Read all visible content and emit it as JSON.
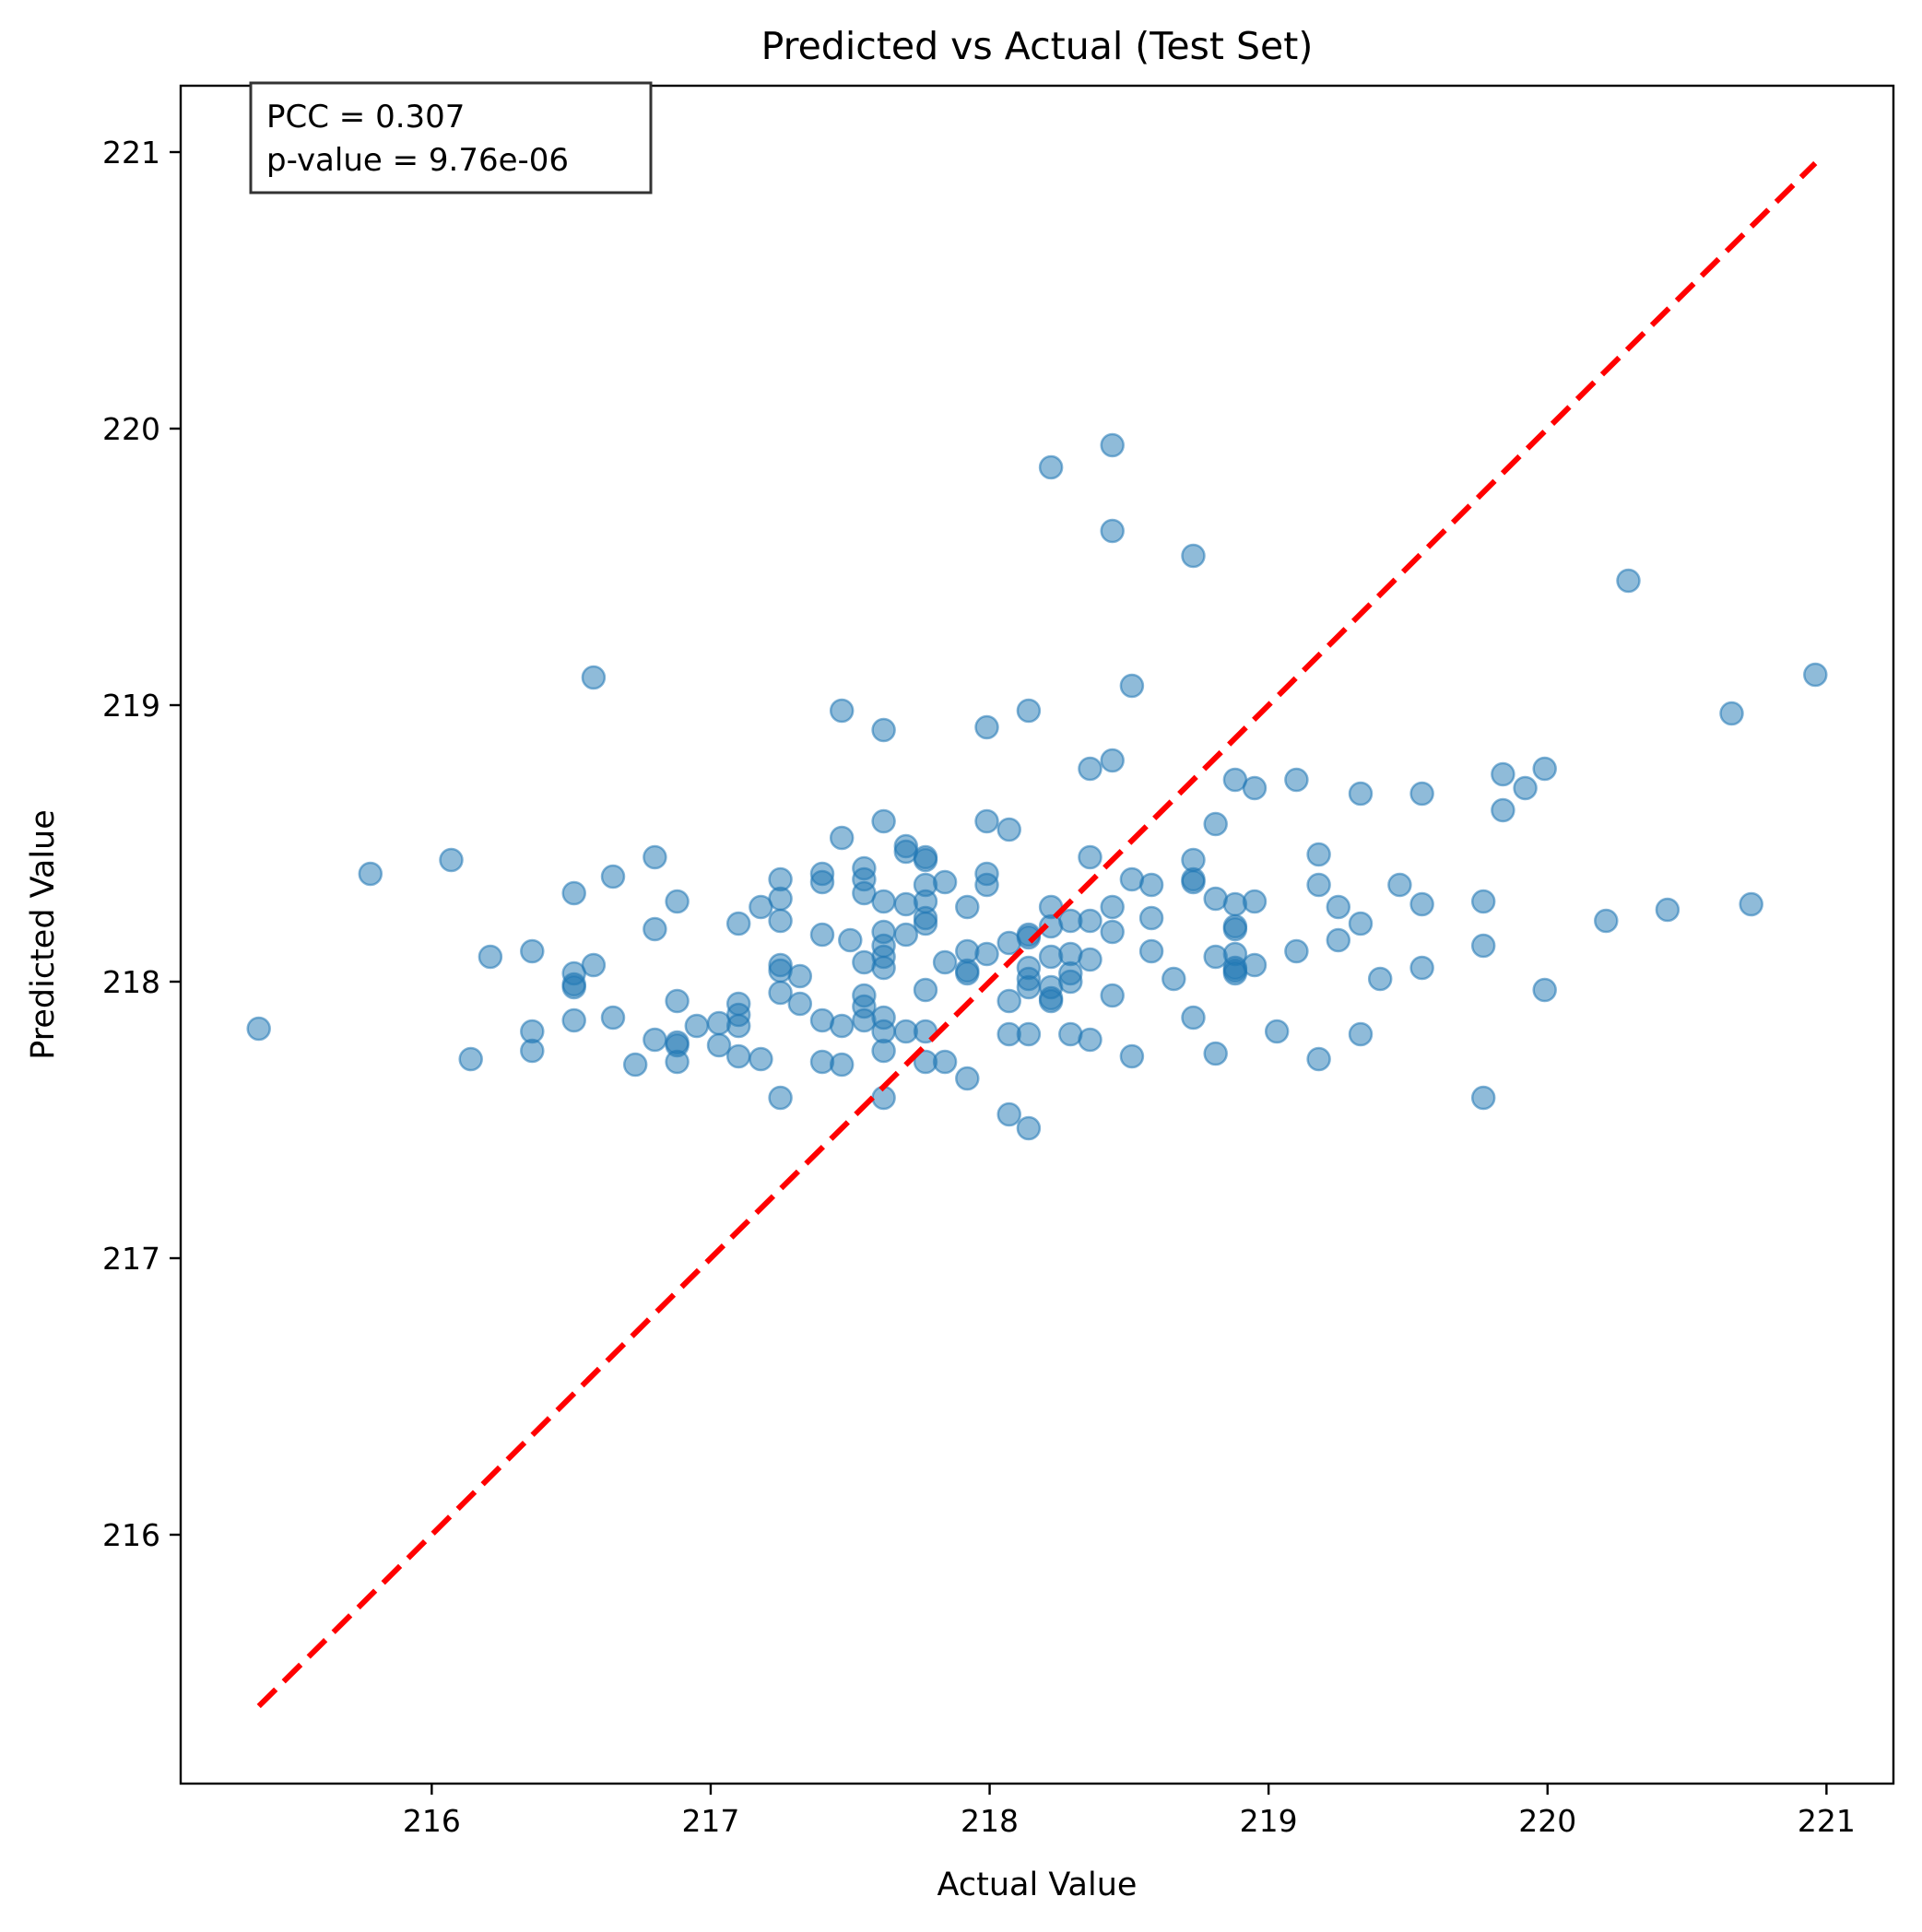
{
  "chart_data": {
    "type": "scatter",
    "title": "Predicted vs Actual (Test Set)",
    "xlabel": "Actual Value",
    "ylabel": "Predicted Value",
    "xlim": [
      215.1,
      221.24
    ],
    "ylim": [
      215.1,
      221.24
    ],
    "xticks": [
      "216",
      "217",
      "218",
      "219",
      "220",
      "221"
    ],
    "yticks": [
      "216",
      "217",
      "218",
      "219",
      "220",
      "221"
    ],
    "grid": false,
    "annotation": {
      "line1": "PCC = 0.307",
      "line2": "p-value = 9.76e-06"
    },
    "reference_line": {
      "from": [
        215.38,
        215.38
      ],
      "to": [
        220.96,
        220.96
      ],
      "color": "#ff0000",
      "style": "dashed"
    },
    "marker_color": "#1f77b4",
    "points": [
      [
        215.38,
        217.83
      ],
      [
        215.78,
        218.39
      ],
      [
        216.07,
        218.44
      ],
      [
        216.14,
        217.72
      ],
      [
        216.21,
        218.09
      ],
      [
        216.36,
        218.11
      ],
      [
        216.36,
        217.82
      ],
      [
        216.36,
        217.75
      ],
      [
        216.51,
        218.32
      ],
      [
        216.51,
        218.03
      ],
      [
        216.51,
        217.99
      ],
      [
        216.51,
        217.98
      ],
      [
        216.51,
        217.86
      ],
      [
        216.58,
        219.1
      ],
      [
        216.58,
        218.06
      ],
      [
        216.65,
        218.38
      ],
      [
        216.65,
        217.87
      ],
      [
        216.73,
        217.7
      ],
      [
        216.8,
        218.45
      ],
      [
        216.8,
        218.19
      ],
      [
        216.8,
        217.79
      ],
      [
        216.88,
        218.29
      ],
      [
        216.88,
        217.93
      ],
      [
        216.88,
        217.78
      ],
      [
        216.88,
        217.77
      ],
      [
        216.88,
        217.71
      ],
      [
        216.95,
        217.84
      ],
      [
        217.03,
        217.85
      ],
      [
        217.03,
        217.77
      ],
      [
        217.1,
        218.21
      ],
      [
        217.1,
        217.92
      ],
      [
        217.1,
        217.88
      ],
      [
        217.1,
        217.84
      ],
      [
        217.1,
        217.73
      ],
      [
        217.18,
        218.27
      ],
      [
        217.18,
        217.72
      ],
      [
        217.25,
        218.37
      ],
      [
        217.25,
        218.3
      ],
      [
        217.25,
        218.22
      ],
      [
        217.25,
        218.06
      ],
      [
        217.25,
        218.04
      ],
      [
        217.25,
        217.96
      ],
      [
        217.25,
        217.58
      ],
      [
        217.32,
        218.02
      ],
      [
        217.32,
        217.92
      ],
      [
        217.4,
        218.39
      ],
      [
        217.4,
        218.36
      ],
      [
        217.4,
        218.17
      ],
      [
        217.4,
        217.86
      ],
      [
        217.4,
        217.71
      ],
      [
        217.47,
        218.98
      ],
      [
        217.47,
        218.52
      ],
      [
        217.47,
        217.84
      ],
      [
        217.47,
        217.7
      ],
      [
        217.5,
        218.15
      ],
      [
        217.55,
        218.41
      ],
      [
        217.55,
        218.37
      ],
      [
        217.55,
        218.32
      ],
      [
        217.55,
        218.07
      ],
      [
        217.55,
        217.95
      ],
      [
        217.55,
        217.91
      ],
      [
        217.55,
        217.86
      ],
      [
        217.62,
        218.91
      ],
      [
        217.62,
        218.58
      ],
      [
        217.62,
        218.29
      ],
      [
        217.62,
        218.18
      ],
      [
        217.62,
        218.13
      ],
      [
        217.62,
        218.09
      ],
      [
        217.62,
        218.05
      ],
      [
        217.62,
        217.87
      ],
      [
        217.62,
        217.82
      ],
      [
        217.62,
        217.75
      ],
      [
        217.62,
        217.58
      ],
      [
        217.7,
        218.49
      ],
      [
        217.7,
        218.47
      ],
      [
        217.7,
        218.28
      ],
      [
        217.7,
        218.17
      ],
      [
        217.7,
        217.82
      ],
      [
        217.77,
        218.45
      ],
      [
        217.77,
        218.44
      ],
      [
        217.77,
        218.35
      ],
      [
        217.77,
        218.29
      ],
      [
        217.77,
        218.23
      ],
      [
        217.77,
        218.21
      ],
      [
        217.77,
        217.97
      ],
      [
        217.77,
        217.82
      ],
      [
        217.77,
        217.71
      ],
      [
        217.84,
        218.36
      ],
      [
        217.84,
        218.07
      ],
      [
        217.84,
        217.71
      ],
      [
        217.92,
        218.27
      ],
      [
        217.92,
        218.11
      ],
      [
        217.92,
        218.04
      ],
      [
        217.92,
        218.03
      ],
      [
        217.92,
        217.65
      ],
      [
        217.99,
        218.92
      ],
      [
        217.99,
        218.58
      ],
      [
        217.99,
        218.39
      ],
      [
        217.99,
        218.35
      ],
      [
        217.99,
        218.1
      ],
      [
        218.07,
        218.55
      ],
      [
        218.07,
        218.14
      ],
      [
        218.07,
        217.93
      ],
      [
        218.07,
        217.81
      ],
      [
        218.07,
        217.52
      ],
      [
        218.14,
        218.98
      ],
      [
        218.14,
        218.17
      ],
      [
        218.14,
        218.16
      ],
      [
        218.14,
        218.05
      ],
      [
        218.14,
        218.01
      ],
      [
        218.14,
        217.98
      ],
      [
        218.14,
        217.81
      ],
      [
        218.14,
        217.47
      ],
      [
        218.22,
        219.86
      ],
      [
        218.22,
        218.27
      ],
      [
        218.22,
        218.2
      ],
      [
        218.22,
        218.09
      ],
      [
        218.22,
        217.98
      ],
      [
        218.22,
        217.94
      ],
      [
        218.22,
        217.93
      ],
      [
        218.29,
        218.22
      ],
      [
        218.29,
        218.1
      ],
      [
        218.29,
        218.03
      ],
      [
        218.29,
        218.0
      ],
      [
        218.29,
        217.81
      ],
      [
        218.36,
        218.77
      ],
      [
        218.36,
        218.45
      ],
      [
        218.36,
        218.22
      ],
      [
        218.36,
        218.08
      ],
      [
        218.36,
        217.79
      ],
      [
        218.44,
        219.94
      ],
      [
        218.44,
        219.63
      ],
      [
        218.44,
        218.8
      ],
      [
        218.44,
        218.27
      ],
      [
        218.44,
        218.18
      ],
      [
        218.44,
        217.95
      ],
      [
        218.51,
        219.07
      ],
      [
        218.51,
        218.37
      ],
      [
        218.51,
        217.73
      ],
      [
        218.58,
        218.35
      ],
      [
        218.58,
        218.23
      ],
      [
        218.58,
        218.11
      ],
      [
        218.66,
        218.01
      ],
      [
        218.73,
        219.54
      ],
      [
        218.73,
        218.44
      ],
      [
        218.73,
        218.37
      ],
      [
        218.73,
        218.36
      ],
      [
        218.73,
        217.87
      ],
      [
        218.81,
        218.57
      ],
      [
        218.81,
        218.3
      ],
      [
        218.81,
        218.09
      ],
      [
        218.81,
        217.74
      ],
      [
        218.88,
        218.73
      ],
      [
        218.88,
        218.28
      ],
      [
        218.88,
        218.2
      ],
      [
        218.88,
        218.19
      ],
      [
        218.88,
        218.1
      ],
      [
        218.88,
        218.05
      ],
      [
        218.88,
        218.04
      ],
      [
        218.88,
        218.03
      ],
      [
        218.95,
        218.7
      ],
      [
        218.95,
        218.29
      ],
      [
        218.95,
        218.06
      ],
      [
        219.03,
        217.82
      ],
      [
        219.1,
        218.73
      ],
      [
        219.1,
        218.11
      ],
      [
        219.18,
        218.46
      ],
      [
        219.18,
        218.35
      ],
      [
        219.18,
        217.72
      ],
      [
        219.25,
        218.27
      ],
      [
        219.25,
        218.15
      ],
      [
        219.33,
        218.68
      ],
      [
        219.33,
        218.21
      ],
      [
        219.33,
        217.81
      ],
      [
        219.4,
        218.01
      ],
      [
        219.47,
        218.35
      ],
      [
        219.55,
        218.68
      ],
      [
        219.55,
        218.28
      ],
      [
        219.55,
        218.05
      ],
      [
        219.77,
        218.29
      ],
      [
        219.77,
        218.13
      ],
      [
        219.77,
        217.58
      ],
      [
        219.84,
        218.75
      ],
      [
        219.84,
        218.62
      ],
      [
        219.92,
        218.7
      ],
      [
        219.99,
        218.77
      ],
      [
        219.99,
        217.97
      ],
      [
        220.21,
        218.22
      ],
      [
        220.29,
        219.45
      ],
      [
        220.43,
        218.26
      ],
      [
        220.66,
        218.97
      ],
      [
        220.73,
        218.28
      ],
      [
        220.96,
        219.11
      ]
    ]
  }
}
